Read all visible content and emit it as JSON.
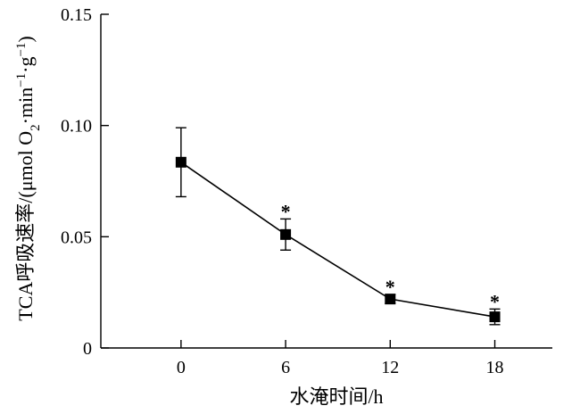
{
  "chart_data": {
    "type": "line",
    "xlabel": "水淹时间/h",
    "ylabel_parts": {
      "main": "TCA呼吸速率/(μmol O",
      "o_sub": "2",
      "mid": "·min",
      "min_sup": "−1",
      "mid2": "·g",
      "g_sup": "−1",
      "end": ")"
    },
    "x": [
      0,
      6,
      12,
      18
    ],
    "x_ticks": [
      "0",
      "6",
      "12",
      "18"
    ],
    "xlim": [
      -4.6,
      21.3
    ],
    "ylim": [
      0,
      0.15
    ],
    "y_ticks": [
      {
        "value": 0,
        "label": "0"
      },
      {
        "value": 0.05,
        "label": "0.05"
      },
      {
        "value": 0.1,
        "label": "0.10"
      },
      {
        "value": 0.15,
        "label": "0.15"
      }
    ],
    "series": [
      {
        "values": [
          0.0835,
          0.051,
          0.022,
          0.014
        ],
        "error": [
          0.0155,
          0.007,
          0.002,
          0.0035
        ],
        "significance": [
          "",
          "*",
          "*",
          "*"
        ]
      }
    ],
    "grid": false,
    "legend": "none"
  }
}
